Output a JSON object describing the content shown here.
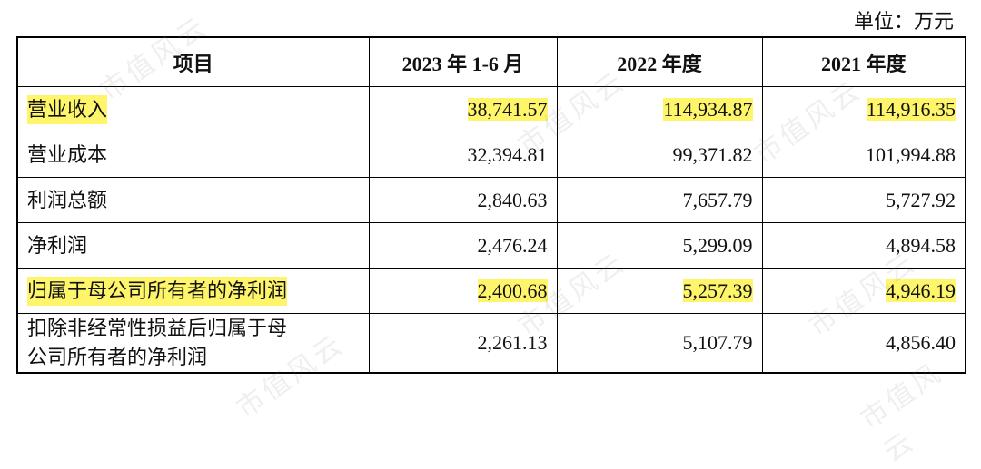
{
  "unit": "单位：万元",
  "watermark": "市值风云",
  "table": {
    "header": [
      "项目",
      "2023 年 1-6 月",
      "2022 年度",
      "2021 年度"
    ],
    "rows": [
      {
        "cells": [
          "营业收入",
          "38,741.57",
          "114,934.87",
          "114,916.35"
        ],
        "highlight": true
      },
      {
        "cells": [
          "营业成本",
          "32,394.81",
          "99,371.82",
          "101,994.88"
        ],
        "highlight": false
      },
      {
        "cells": [
          "利润总额",
          "2,840.63",
          "7,657.79",
          "5,727.92"
        ],
        "highlight": false
      },
      {
        "cells": [
          "净利润",
          "2,476.24",
          "5,299.09",
          "4,894.58"
        ],
        "highlight": false
      },
      {
        "cells": [
          "归属于母公司所有者的净利润",
          "2,400.68",
          "5,257.39",
          "4,946.19"
        ],
        "highlight": true
      },
      {
        "cells": [
          "扣除非经常性损益后归属于母公司所有者的净利润",
          "2,261.13",
          "5,107.79",
          "4,856.40"
        ],
        "highlight": false
      }
    ]
  }
}
